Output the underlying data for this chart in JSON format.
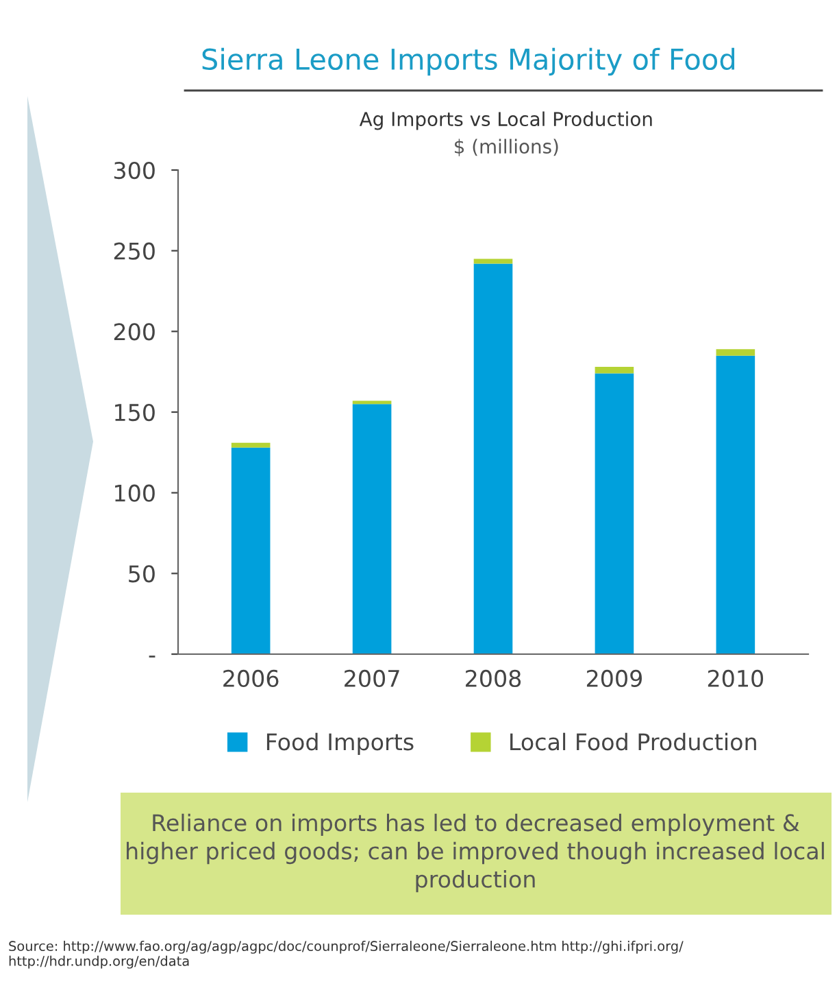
{
  "chart_data": {
    "type": "bar",
    "stacked": true,
    "title": "Sierra Leone Imports Majority of Food",
    "subtitle": "Ag Imports vs Local Production",
    "ylabel": "$ (millions)",
    "categories": [
      "2006",
      "2007",
      "2008",
      "2009",
      "2010"
    ],
    "series": [
      {
        "name": "Food Imports",
        "color": "#00a0dc",
        "values": [
          128,
          155,
          242,
          174,
          185
        ]
      },
      {
        "name": "Local Food Production",
        "color": "#b5d334",
        "values": [
          3,
          2,
          3,
          4,
          4
        ]
      }
    ],
    "ylim": [
      0,
      300
    ],
    "yticks": [
      {
        "value": 0,
        "label": "-"
      },
      50,
      100,
      150,
      200,
      250,
      300
    ],
    "grid": false,
    "legend": "bottom",
    "annotations": [
      "Reliance on imports has led to decreased employment & higher priced goods; can be improved though increased local production",
      "Source: http://www.fao.org/ag/agp/agpc/doc/counprof/Sierraleone/Sierraleone.htm http://ghi.ifpri.org/ http://hdr.undp.org/en/data"
    ]
  }
}
